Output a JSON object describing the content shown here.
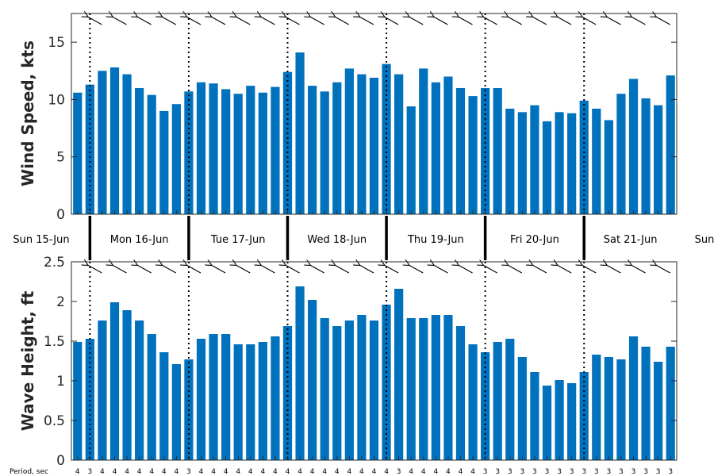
{
  "colors": {
    "bar": "#0072BD",
    "axis": "#262626",
    "separator": "#000000"
  },
  "chart_data": [
    {
      "type": "bar",
      "ylabel": "Wind Speed, kts",
      "ylim": [
        0,
        17.5
      ],
      "yticks": [
        "0",
        "5",
        "10",
        "15"
      ],
      "values": [
        10.6,
        11.3,
        12.5,
        12.8,
        12.2,
        11.0,
        10.4,
        9.0,
        9.6,
        10.7,
        11.5,
        11.4,
        10.9,
        10.5,
        11.2,
        10.6,
        11.1,
        12.4,
        14.1,
        11.2,
        10.7,
        11.5,
        12.7,
        12.2,
        11.9,
        13.1,
        12.2,
        9.4,
        12.7,
        11.5,
        12.0,
        11.0,
        10.3,
        11.0,
        11.0,
        9.2,
        8.9,
        9.5,
        8.1,
        8.9,
        8.8,
        9.9,
        9.2,
        8.2,
        10.5,
        11.8,
        10.1,
        9.5,
        12.1
      ],
      "direction_arrows": true
    },
    {
      "type": "bar",
      "ylabel": "Wave Height, ft",
      "ylim": [
        0,
        2.5
      ],
      "yticks": [
        "0",
        "0.5",
        "1",
        "1.5",
        "2",
        "2.5"
      ],
      "values": [
        1.49,
        1.53,
        1.76,
        1.99,
        1.89,
        1.76,
        1.59,
        1.36,
        1.21,
        1.27,
        1.53,
        1.59,
        1.59,
        1.46,
        1.46,
        1.49,
        1.56,
        1.69,
        2.19,
        2.02,
        1.79,
        1.69,
        1.76,
        1.83,
        1.76,
        1.96,
        2.16,
        1.79,
        1.79,
        1.83,
        1.83,
        1.69,
        1.46,
        1.36,
        1.49,
        1.53,
        1.3,
        1.11,
        0.94,
        1.01,
        0.97,
        1.11,
        1.33,
        1.3,
        1.27,
        1.56,
        1.43,
        1.24,
        1.43
      ],
      "direction_arrows": true,
      "period_label": "Period, sec",
      "periods": [
        "4",
        "3",
        "4",
        "4",
        "4",
        "4",
        "4",
        "4",
        "4",
        "3",
        "4",
        "4",
        "4",
        "4",
        "4",
        "4",
        "4",
        "4",
        "4",
        "4",
        "4",
        "4",
        "4",
        "4",
        "4",
        "4",
        "3",
        "4",
        "4",
        "4",
        "4",
        "4",
        "4",
        "3",
        "3",
        "3",
        "3",
        "3",
        "3",
        "3",
        "3",
        "3",
        "3",
        "3",
        "3",
        "3",
        "3",
        "3",
        "3"
      ]
    }
  ],
  "days": [
    "Sun 15-Jun",
    "Mon 16-Jun",
    "Tue 17-Jun",
    "Wed 18-Jun",
    "Thu 19-Jun",
    "Fri 20-Jun",
    "Sat 21-Jun",
    "Sun"
  ]
}
